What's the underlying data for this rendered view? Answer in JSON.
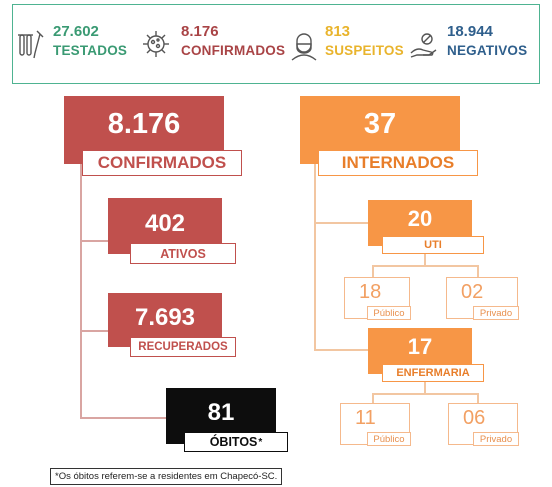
{
  "stats": {
    "testados": {
      "value": "27.602",
      "label": "TESTADOS",
      "icon": "test-tubes-icon"
    },
    "confirmados": {
      "value": "8.176",
      "label": "CONFIRMADOS",
      "icon": "virus-icon"
    },
    "suspeitos": {
      "value": "813",
      "label": "SUSPEITOS",
      "icon": "masked-person-icon"
    },
    "negativos": {
      "value": "18.944",
      "label": "NEGATIVOS",
      "icon": "hand-virus-icon"
    }
  },
  "confirmados": {
    "value": "8.176",
    "label": "CONFIRMADOS"
  },
  "ativos": {
    "value": "402",
    "label": "ATIVOS"
  },
  "recuperados": {
    "value": "7.693",
    "label": "RECUPERADOS"
  },
  "obitos": {
    "value": "81",
    "label": "ÓBITOS",
    "mark": "*"
  },
  "internados": {
    "value": "37",
    "label": "INTERNADOS"
  },
  "uti": {
    "value": "20",
    "label": "UTI",
    "publico": {
      "value": "18",
      "label": "Público"
    },
    "privado": {
      "value": "02",
      "label": "Privado"
    }
  },
  "enfermaria": {
    "value": "17",
    "label": "ENFERMARIA",
    "publico": {
      "value": "11",
      "label": "Público"
    },
    "privado": {
      "value": "06",
      "label": "Privado"
    }
  },
  "footnote": "*Os óbitos referem-se a residentes em Chapecó-SC.",
  "colors": {
    "red": "#c0504d",
    "orange": "#f79646",
    "black": "#0d0d0d",
    "green_text": "#3a9a73",
    "yellow_text": "#e9b42d",
    "blue_text": "#2f5f8c",
    "frame": "#4eb391"
  }
}
